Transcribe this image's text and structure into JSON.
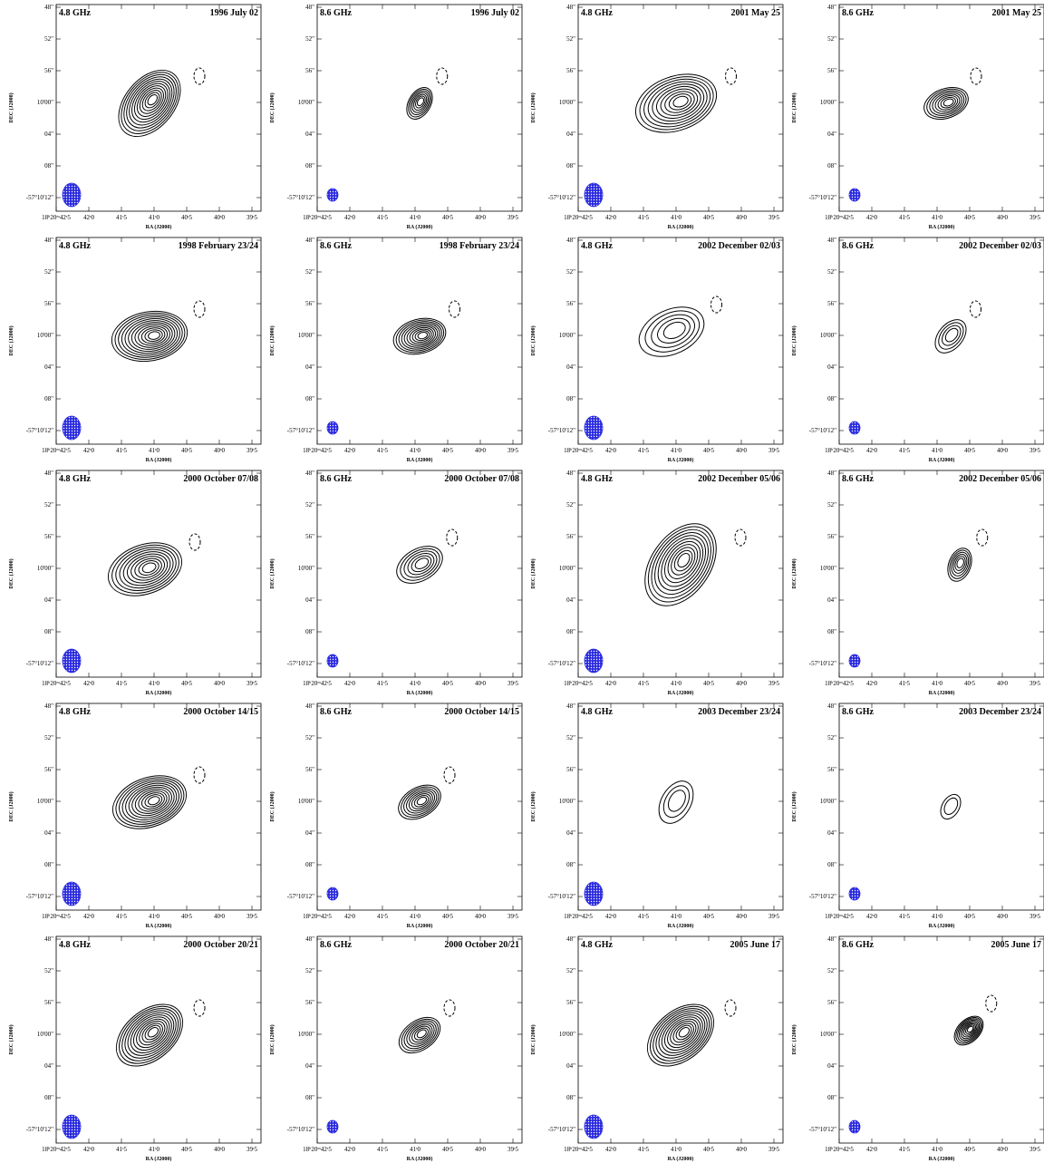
{
  "axes": {
    "x_label": "RA (J2000)",
    "y_label": "DEC (J2000)",
    "x_ticks": [
      "18ʰ20ᵐ42ˢ5",
      "42ˢ0",
      "41ˢ5",
      "41ˢ0",
      "40ˢ5",
      "40ˢ0",
      "39ˢ5"
    ],
    "y_ticks": [
      "48\"",
      "52\"",
      "56\"",
      "10'00\"",
      "04\"",
      "08\"",
      "-57°10'12\""
    ]
  },
  "panels": [
    {
      "band": "4.8 GHz",
      "date": "1996 July 02"
    },
    {
      "band": "8.6 GHz",
      "date": "1996 July 02"
    },
    {
      "band": "4.8 GHz",
      "date": "2001 May 25"
    },
    {
      "band": "8.6 GHz",
      "date": "2001 May 25"
    },
    {
      "band": "4.8 GHz",
      "date": "1998 February 23/24"
    },
    {
      "band": "8.6 GHz",
      "date": "1998 February 23/24"
    },
    {
      "band": "4.8 GHz",
      "date": "2002 December 02/03"
    },
    {
      "band": "8.6 GHz",
      "date": "2002 December 02/03"
    },
    {
      "band": "4.8 GHz",
      "date": "2000 October 07/08"
    },
    {
      "band": "8.6 GHz",
      "date": "2000 October 07/08"
    },
    {
      "band": "4.8 GHz",
      "date": "2002 December 05/06"
    },
    {
      "band": "8.6 GHz",
      "date": "2002 December 05/06"
    },
    {
      "band": "4.8 GHz",
      "date": "2000 October 14/15"
    },
    {
      "band": "8.6 GHz",
      "date": "2000 October 14/15"
    },
    {
      "band": "4.8 GHz",
      "date": "2003 December 23/24"
    },
    {
      "band": "8.6 GHz",
      "date": "2003 December 23/24"
    },
    {
      "band": "4.8 GHz",
      "date": "2000 October 20/21"
    },
    {
      "band": "8.6 GHz",
      "date": "2000 October 20/21"
    },
    {
      "band": "4.8 GHz",
      "date": "2005 June 17"
    },
    {
      "band": "8.6 GHz",
      "date": "2005 June 17"
    }
  ]
}
